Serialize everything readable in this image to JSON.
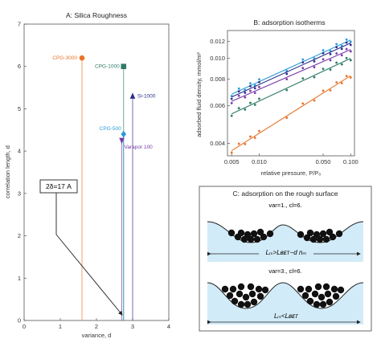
{
  "figure": {
    "panel_a": {
      "title": "A: Silica Roughness",
      "xlabel": "variance, d",
      "ylabel": "correlation length, d",
      "annotation": "2δ=17 A"
    },
    "panel_b": {
      "title": "B: adsorption isotherms",
      "xlabel": "relative pressure, P/P₀",
      "ylabel": "adsorbed fluid density, mmol/m²"
    },
    "panel_c": {
      "title": "C: adsorption on the rough surface",
      "case1_label": "var=1., cl=6.",
      "case1_relation": "Lᵣₛ>Lʙᴇᴛ−d nₘ",
      "case2_label": "var=3., cl=6.",
      "case2_relation": "Lᵣₛ<Lʙᴇᴛ"
    }
  },
  "chart_data": [
    {
      "type": "scatter",
      "title": "A: Silica Roughness",
      "xlabel": "variance, d",
      "ylabel": "correlation length, d",
      "xlim": [
        0,
        4
      ],
      "ylim": [
        0,
        7
      ],
      "xticks": [
        "0",
        "1",
        "2",
        "3",
        "4"
      ],
      "yticks": [
        "0",
        "1",
        "2",
        "3",
        "4",
        "5",
        "6",
        "7"
      ],
      "points": [
        {
          "name": "CPG-3000",
          "x": 1.6,
          "y": 6.2,
          "color": "#e8742a",
          "marker": "circle"
        },
        {
          "name": "CPG-1000",
          "x": 2.75,
          "y": 6.0,
          "color": "#2e7a66",
          "marker": "square"
        },
        {
          "name": "Si-1000",
          "x": 3.0,
          "y": 5.3,
          "color": "#2b2f8a",
          "marker": "triangle-up"
        },
        {
          "name": "CPG-500",
          "x": 2.75,
          "y": 4.4,
          "color": "#2a9ad8",
          "marker": "diamond"
        },
        {
          "name": "Varapor 100",
          "x": 2.7,
          "y": 4.25,
          "color": "#7a3aa8",
          "marker": "triangle-down"
        }
      ]
    },
    {
      "type": "line",
      "title": "B: adsorption isotherms",
      "xlabel": "relative pressure, P/P₀",
      "ylabel": "adsorbed fluid density, mmol/m²",
      "xscale": "log",
      "yscale": "log",
      "xlim": [
        0.0045,
        0.11
      ],
      "ylim": [
        0.0035,
        0.0135
      ],
      "xticks": [
        "0.005",
        "0.010",
        "0.050",
        "0.100"
      ],
      "yticks": [
        "0.004",
        "0.006",
        "0.008",
        "0.010",
        "0.012"
      ],
      "series": [
        {
          "color": "#2a9ad8",
          "start": [
            0.005,
            0.0068
          ],
          "end": [
            0.1,
            0.0122
          ]
        },
        {
          "color": "#2b2f8a",
          "start": [
            0.005,
            0.0066
          ],
          "end": [
            0.1,
            0.0118
          ]
        },
        {
          "color": "#7a3aa8",
          "start": [
            0.005,
            0.0063
          ],
          "end": [
            0.1,
            0.011
          ]
        },
        {
          "color": "#2e7a66",
          "start": [
            0.005,
            0.0055
          ],
          "end": [
            0.1,
            0.01
          ]
        },
        {
          "color": "#e8742a",
          "start": [
            0.005,
            0.0037
          ],
          "end": [
            0.1,
            0.0083
          ]
        }
      ]
    }
  ]
}
